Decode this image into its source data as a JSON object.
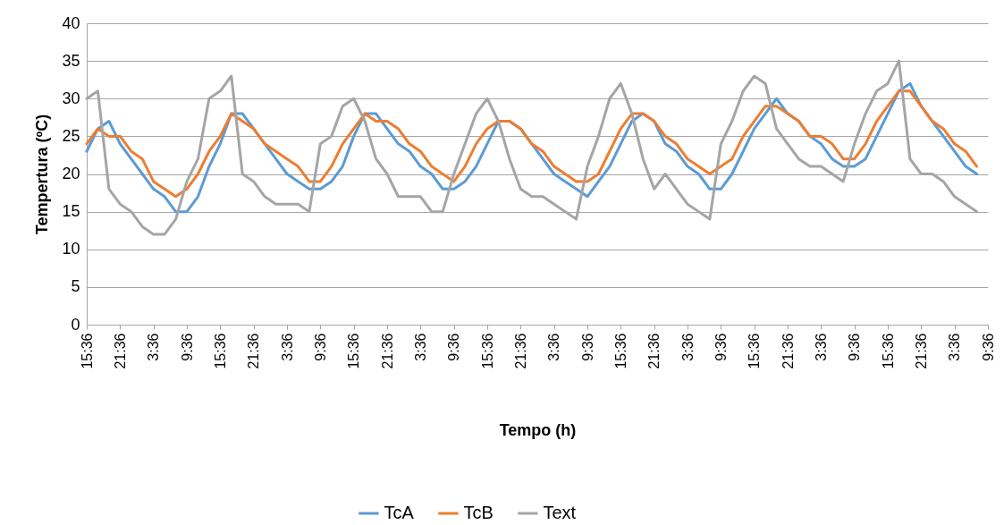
{
  "chart_data": {
    "type": "line",
    "xlabel": "Tempo (h)",
    "ylabel": "Tempertura (ºC)",
    "categories": [
      "15:36",
      null,
      null,
      "21:36",
      null,
      null,
      "3:36",
      null,
      null,
      "9:36",
      null,
      null,
      "15:36",
      null,
      null,
      "21:36",
      null,
      null,
      "3:36",
      null,
      null,
      "9:36",
      null,
      null,
      "15:36",
      null,
      null,
      "21:36",
      null,
      null,
      "3:36",
      null,
      null,
      "9:36",
      null,
      null,
      "15:36",
      null,
      null,
      "21:36",
      null,
      null,
      "3:36",
      null,
      null,
      "9:36",
      null,
      null,
      "15:36",
      null,
      null,
      "21:36",
      null,
      null,
      "3:36",
      null,
      null,
      "9:36",
      null,
      null,
      "15:36",
      null,
      null,
      "21:36",
      null,
      null,
      "3:36",
      null,
      null,
      "9:36",
      null,
      null,
      "15:36",
      null,
      null,
      "21:36",
      null,
      null,
      "3:36",
      null,
      null,
      "9:36"
    ],
    "ylim": [
      0,
      40
    ],
    "yticks": [
      0,
      5,
      10,
      15,
      20,
      25,
      30,
      35,
      40
    ],
    "grid": "y",
    "legend": "bottom",
    "marker": "none",
    "line_style": "solid",
    "series": [
      {
        "name": "TcA",
        "color": "#5b9bd5",
        "values": [
          23,
          26,
          27,
          24,
          22,
          20,
          18,
          17,
          15,
          15,
          17,
          21,
          24,
          28,
          28,
          26,
          24,
          22,
          20,
          19,
          18,
          18,
          19,
          21,
          25,
          28,
          28,
          26,
          24,
          23,
          21,
          20,
          18,
          18,
          19,
          21,
          24,
          27,
          27,
          26,
          24,
          22,
          20,
          19,
          18,
          17,
          19,
          21,
          24,
          27,
          28,
          27,
          24,
          23,
          21,
          20,
          18,
          18,
          20,
          23,
          26,
          28,
          30,
          28,
          27,
          25,
          24,
          22,
          21,
          21,
          22,
          25,
          28,
          31,
          32,
          29,
          27,
          25,
          23,
          21,
          20,
          null
        ]
      },
      {
        "name": "TcB",
        "color": "#ed7d31",
        "values": [
          24,
          26,
          25,
          25,
          23,
          22,
          19,
          18,
          17,
          18,
          20,
          23,
          25,
          28,
          27,
          26,
          24,
          23,
          22,
          21,
          19,
          19,
          21,
          24,
          26,
          28,
          27,
          27,
          26,
          24,
          23,
          21,
          20,
          19,
          21,
          24,
          26,
          27,
          27,
          26,
          24,
          23,
          21,
          20,
          19,
          19,
          20,
          23,
          26,
          28,
          28,
          27,
          25,
          24,
          22,
          21,
          20,
          21,
          22,
          25,
          27,
          29,
          29,
          28,
          27,
          25,
          25,
          24,
          22,
          22,
          24,
          27,
          29,
          31,
          31,
          29,
          27,
          26,
          24,
          23,
          21,
          null
        ]
      },
      {
        "name": "Text",
        "color": "#a5a5a5",
        "values": [
          30,
          31,
          18,
          16,
          15,
          13,
          12,
          12,
          14,
          19,
          22,
          30,
          31,
          33,
          20,
          19,
          17,
          16,
          16,
          16,
          15,
          24,
          25,
          29,
          30,
          27,
          22,
          20,
          17,
          17,
          17,
          15,
          15,
          20,
          24,
          28,
          30,
          27,
          22,
          18,
          17,
          17,
          16,
          15,
          14,
          21,
          25,
          30,
          32,
          28,
          22,
          18,
          20,
          18,
          16,
          15,
          14,
          24,
          27,
          31,
          33,
          32,
          26,
          24,
          22,
          21,
          21,
          20,
          19,
          24,
          28,
          31,
          32,
          35,
          22,
          20,
          20,
          19,
          17,
          16,
          15,
          null
        ]
      }
    ]
  }
}
